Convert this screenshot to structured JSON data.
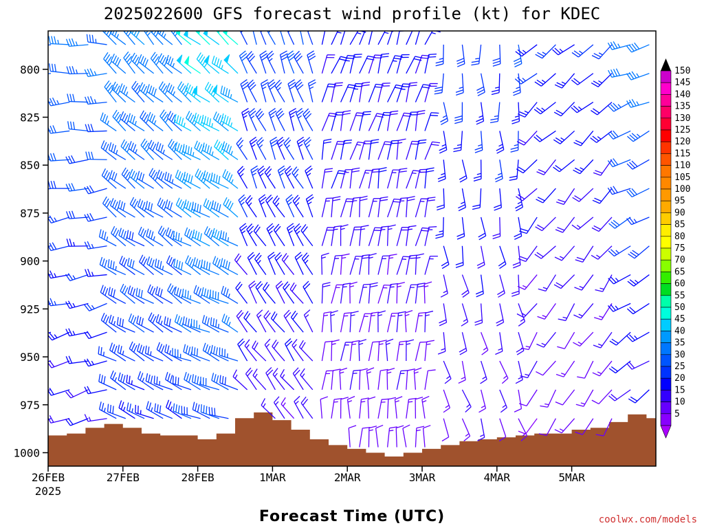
{
  "chart_data": {
    "type": "wind-profile",
    "title": "2025022600 GFS forecast wind profile (kt) for KDEC",
    "xlabel": "Forecast Time (UTC)",
    "credit": "coolwx.com/models",
    "credit_color": "#d03030",
    "y_ticks": [
      "800",
      "825",
      "850",
      "875",
      "900",
      "925",
      "950",
      "975",
      "1000"
    ],
    "y_axis": {
      "min": 780,
      "max": 1007,
      "inverted": true
    },
    "x_ticks": [
      "26FEB",
      "27FEB",
      "28FEB",
      "1MAR",
      "2MAR",
      "3MAR",
      "4MAR",
      "5MAR"
    ],
    "x_subtick": "2025",
    "x_axis": {
      "start": 0,
      "end": 195,
      "unit": "forecast hours"
    },
    "levels": [
      785,
      800,
      815,
      830,
      845,
      860,
      875,
      890,
      905,
      920,
      935,
      950,
      965,
      980,
      995
    ],
    "times": [
      0,
      6,
      12,
      18,
      21,
      24,
      27,
      30,
      33,
      36,
      39,
      42,
      45,
      48,
      51,
      54,
      57,
      60,
      63,
      66,
      69,
      72,
      75,
      78,
      81,
      84,
      87,
      90,
      93,
      96,
      99,
      102,
      105,
      108,
      111,
      114,
      117,
      120,
      126,
      132,
      138,
      144,
      150,
      156,
      162,
      168,
      174,
      180,
      186,
      192
    ],
    "wind_phases": [
      {
        "t_end": 18,
        "dir": 270,
        "speed_surface": 18,
        "speed_top": 35
      },
      {
        "t_end": 42,
        "dir": 315,
        "speed_surface": 25,
        "speed_top": 38
      },
      {
        "t_end": 60,
        "dir": 310,
        "speed_surface": 28,
        "speed_top": 50
      },
      {
        "t_end": 84,
        "dir": 340,
        "speed_surface": 15,
        "speed_top": 30
      },
      {
        "t_end": 120,
        "dir": 20,
        "speed_surface": 12,
        "speed_top": 22
      },
      {
        "t_end": 150,
        "dir": 180,
        "speed_surface": 12,
        "speed_top": 28
      },
      {
        "t_end": 180,
        "dir": 230,
        "speed_surface": 10,
        "speed_top": 25
      },
      {
        "t_end": 195,
        "dir": 250,
        "speed_surface": 15,
        "speed_top": 38
      }
    ],
    "terrain": {
      "color": "#a0522d",
      "times": [
        0,
        6,
        12,
        18,
        24,
        30,
        36,
        42,
        48,
        54,
        60,
        66,
        72,
        78,
        84,
        90,
        96,
        102,
        108,
        114,
        120,
        126,
        132,
        138,
        144,
        150,
        156,
        162,
        168,
        174,
        180,
        186,
        192,
        195
      ],
      "pressure": [
        991,
        990,
        987,
        985,
        987,
        990,
        991,
        991,
        993,
        990,
        982,
        979,
        983,
        988,
        993,
        996,
        998,
        1000,
        1002,
        1000,
        998,
        996,
        994,
        993,
        992,
        991,
        990,
        990,
        988,
        987,
        984,
        980,
        982,
        983
      ]
    },
    "colorbar": {
      "values": [
        "150",
        "145",
        "140",
        "135",
        "130",
        "125",
        "120",
        "115",
        "110",
        "105",
        "100",
        "95",
        "90",
        "85",
        "80",
        "75",
        "70",
        "65",
        "60",
        "55",
        "50",
        "45",
        "40",
        "35",
        "30",
        "25",
        "20",
        "15",
        "10",
        "5"
      ],
      "colors": [
        "#cc00cc",
        "#ff00cc",
        "#ff0099",
        "#ff0066",
        "#ff0033",
        "#ff0000",
        "#ff3300",
        "#ff5500",
        "#ff7700",
        "#ff8800",
        "#ff9900",
        "#ffaa00",
        "#ffcc00",
        "#ffee00",
        "#ffff00",
        "#ccff00",
        "#88ff00",
        "#33ee00",
        "#00dd22",
        "#00ffaa",
        "#00ffdd",
        "#00ccff",
        "#0099ff",
        "#0077ff",
        "#0055ff",
        "#0033ff",
        "#0000ff",
        "#3300ff",
        "#6600ff",
        "#8800ff"
      ],
      "top_triangle_color": "#000000",
      "bottom_triangle_color": "#aa00ff"
    }
  }
}
